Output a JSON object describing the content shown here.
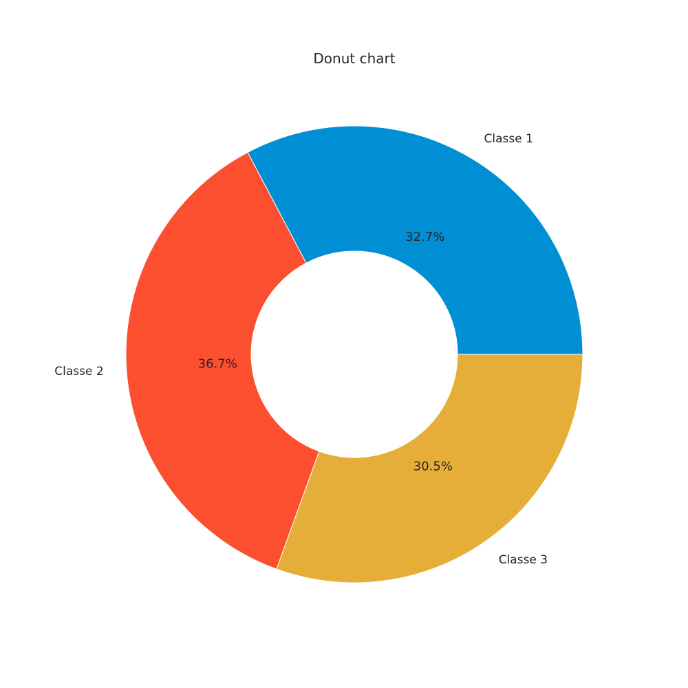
{
  "chart_data": {
    "type": "pie",
    "subtype": "donut",
    "title": "Donut chart",
    "categories": [
      "Classe 1",
      "Classe 2",
      "Classe 3"
    ],
    "values": [
      32.7,
      36.7,
      30.5
    ],
    "value_labels": [
      "32.7%",
      "36.7%",
      "30.5%"
    ],
    "colors": [
      "#008fd5",
      "#fc4f30",
      "#e5ae38"
    ],
    "start_angle_deg": 0,
    "direction": "counterclockwise",
    "legend": "none"
  }
}
